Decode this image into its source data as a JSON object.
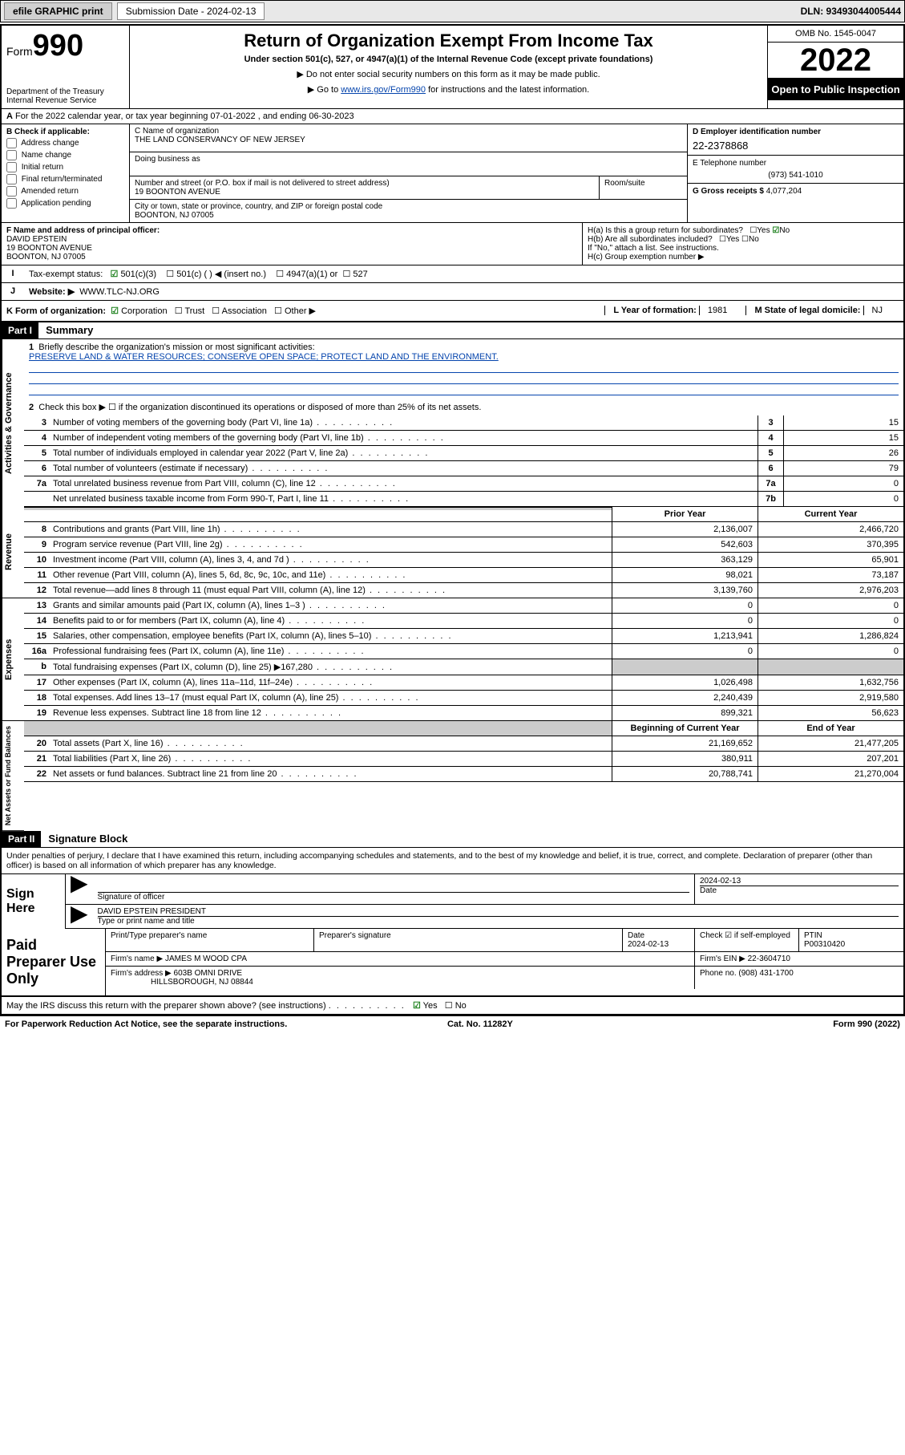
{
  "topbar": {
    "efile": "efile GRAPHIC print",
    "submission_label": "Submission Date - 2024-02-13",
    "dln": "DLN: 93493044005444"
  },
  "header": {
    "form_label": "Form",
    "form_number": "990",
    "dept": "Department of the Treasury\nInternal Revenue Service",
    "title": "Return of Organization Exempt From Income Tax",
    "sub": "Under section 501(c), 527, or 4947(a)(1) of the Internal Revenue Code (except private foundations)",
    "note1": "▶ Do not enter social security numbers on this form as it may be made public.",
    "note2_pre": "▶ Go to ",
    "note2_link": "www.irs.gov/Form990",
    "note2_post": " for instructions and the latest information.",
    "omb": "OMB No. 1545-0047",
    "year": "2022",
    "inspect": "Open to Public Inspection"
  },
  "rowA": "For the 2022 calendar year, or tax year beginning 07-01-2022    , and ending 06-30-2023",
  "boxB": {
    "title": "B Check if applicable:",
    "opts": [
      "Address change",
      "Name change",
      "Initial return",
      "Final return/terminated",
      "Amended return",
      "Application pending"
    ]
  },
  "boxC": {
    "name_lbl": "C Name of organization",
    "name": "THE LAND CONSERVANCY OF NEW JERSEY",
    "dba_lbl": "Doing business as",
    "addr_lbl": "Number and street (or P.O. box if mail is not delivered to street address)",
    "suite_lbl": "Room/suite",
    "addr": "19 BOONTON AVENUE",
    "city_lbl": "City or town, state or province, country, and ZIP or foreign postal code",
    "city": "BOONTON, NJ  07005"
  },
  "boxD": {
    "lbl": "D Employer identification number",
    "ein": "22-2378868",
    "tel_lbl": "E Telephone number",
    "tel": "(973) 541-1010",
    "gross_lbl": "G Gross receipts $",
    "gross": "4,077,204"
  },
  "boxF": {
    "lbl": "F Name and address of principal officer:",
    "name": "DAVID EPSTEIN",
    "addr1": "19 BOONTON AVENUE",
    "addr2": "BOONTON, NJ  07005"
  },
  "boxH": {
    "a_lbl": "H(a)  Is this a group return for subordinates?",
    "a_yes": "Yes",
    "a_no": "No",
    "b_lbl": "H(b)  Are all subordinates included?",
    "b_note": "If \"No,\" attach a list. See instructions.",
    "c_lbl": "H(c)  Group exemption number ▶"
  },
  "rowI": {
    "lbl": "Tax-exempt status:",
    "opts": [
      "501(c)(3)",
      "501(c) (  ) ◀ (insert no.)",
      "4947(a)(1) or",
      "527"
    ]
  },
  "rowJ": {
    "lbl": "Website: ▶",
    "val": "WWW.TLC-NJ.ORG"
  },
  "rowK": {
    "lbl": "K Form of organization:",
    "opts": [
      "Corporation",
      "Trust",
      "Association",
      "Other ▶"
    ],
    "Llbl": "L Year of formation:",
    "Lval": "1981",
    "Mlbl": "M State of legal domicile:",
    "Mval": "NJ"
  },
  "part1": {
    "bar": "Part I",
    "title": "Summary",
    "q1_lbl": "Briefly describe the organization's mission or most significant activities:",
    "q1_txt": "PRESERVE LAND & WATER RESOURCES; CONSERVE OPEN SPACE; PROTECT LAND AND THE ENVIRONMENT.",
    "q2": "Check this box ▶ ☐  if the organization discontinued its operations or disposed of more than 25% of its net assets.",
    "governance": [
      {
        "n": "3",
        "t": "Number of voting members of the governing body (Part VI, line 1a)",
        "b": "3",
        "v": "15"
      },
      {
        "n": "4",
        "t": "Number of independent voting members of the governing body (Part VI, line 1b)",
        "b": "4",
        "v": "15"
      },
      {
        "n": "5",
        "t": "Total number of individuals employed in calendar year 2022 (Part V, line 2a)",
        "b": "5",
        "v": "26"
      },
      {
        "n": "6",
        "t": "Total number of volunteers (estimate if necessary)",
        "b": "6",
        "v": "79"
      },
      {
        "n": "7a",
        "t": "Total unrelated business revenue from Part VIII, column (C), line 12",
        "b": "7a",
        "v": "0"
      },
      {
        "n": "",
        "t": "Net unrelated business taxable income from Form 990-T, Part I, line 11",
        "b": "7b",
        "v": "0"
      }
    ],
    "hdr_prior": "Prior Year",
    "hdr_curr": "Current Year",
    "revenue": [
      {
        "n": "8",
        "t": "Contributions and grants (Part VIII, line 1h)",
        "p": "2,136,007",
        "c": "2,466,720"
      },
      {
        "n": "9",
        "t": "Program service revenue (Part VIII, line 2g)",
        "p": "542,603",
        "c": "370,395"
      },
      {
        "n": "10",
        "t": "Investment income (Part VIII, column (A), lines 3, 4, and 7d )",
        "p": "363,129",
        "c": "65,901"
      },
      {
        "n": "11",
        "t": "Other revenue (Part VIII, column (A), lines 5, 6d, 8c, 9c, 10c, and 11e)",
        "p": "98,021",
        "c": "73,187"
      },
      {
        "n": "12",
        "t": "Total revenue—add lines 8 through 11 (must equal Part VIII, column (A), line 12)",
        "p": "3,139,760",
        "c": "2,976,203"
      }
    ],
    "expenses": [
      {
        "n": "13",
        "t": "Grants and similar amounts paid (Part IX, column (A), lines 1–3 )",
        "p": "0",
        "c": "0"
      },
      {
        "n": "14",
        "t": "Benefits paid to or for members (Part IX, column (A), line 4)",
        "p": "0",
        "c": "0"
      },
      {
        "n": "15",
        "t": "Salaries, other compensation, employee benefits (Part IX, column (A), lines 5–10)",
        "p": "1,213,941",
        "c": "1,286,824"
      },
      {
        "n": "16a",
        "t": "Professional fundraising fees (Part IX, column (A), line 11e)",
        "p": "0",
        "c": "0"
      },
      {
        "n": "b",
        "t": "Total fundraising expenses (Part IX, column (D), line 25) ▶167,280",
        "p": "SHADE",
        "c": "SHADE"
      },
      {
        "n": "17",
        "t": "Other expenses (Part IX, column (A), lines 11a–11d, 11f–24e)",
        "p": "1,026,498",
        "c": "1,632,756"
      },
      {
        "n": "18",
        "t": "Total expenses. Add lines 13–17 (must equal Part IX, column (A), line 25)",
        "p": "2,240,439",
        "c": "2,919,580"
      },
      {
        "n": "19",
        "t": "Revenue less expenses. Subtract line 18 from line 12",
        "p": "899,321",
        "c": "56,623"
      }
    ],
    "hdr_begin": "Beginning of Current Year",
    "hdr_end": "End of Year",
    "netassets": [
      {
        "n": "20",
        "t": "Total assets (Part X, line 16)",
        "p": "21,169,652",
        "c": "21,477,205"
      },
      {
        "n": "21",
        "t": "Total liabilities (Part X, line 26)",
        "p": "380,911",
        "c": "207,201"
      },
      {
        "n": "22",
        "t": "Net assets or fund balances. Subtract line 21 from line 20",
        "p": "20,788,741",
        "c": "21,270,004"
      }
    ]
  },
  "part2": {
    "bar": "Part II",
    "title": "Signature Block"
  },
  "penalty": "Under penalties of perjury, I declare that I have examined this return, including accompanying schedules and statements, and to the best of my knowledge and belief, it is true, correct, and complete. Declaration of preparer (other than officer) is based on all information of which preparer has any knowledge.",
  "sign": {
    "here": "Sign Here",
    "sig_lbl": "Signature of officer",
    "date_lbl": "Date",
    "date": "2024-02-13",
    "name": "DAVID EPSTEIN  PRESIDENT",
    "name_lbl": "Type or print name and title"
  },
  "prep": {
    "here": "Paid Preparer Use Only",
    "h": [
      "Print/Type preparer's name",
      "Preparer's signature",
      "Date",
      "",
      "PTIN"
    ],
    "r1_date": "2024-02-13",
    "r1_chk": "Check ☑ if self-employed",
    "r1_ptin": "P00310420",
    "firm_name_lbl": "Firm's name   ▶",
    "firm_name": "JAMES M WOOD CPA",
    "firm_ein_lbl": "Firm's EIN ▶",
    "firm_ein": "22-3604710",
    "firm_addr_lbl": "Firm's address ▶",
    "firm_addr1": "603B OMNI DRIVE",
    "firm_addr2": "HILLSBOROUGH, NJ  08844",
    "phone_lbl": "Phone no.",
    "phone": "(908) 431-1700"
  },
  "irs_discuss": "May the IRS discuss this return with the preparer shown above? (see instructions)",
  "foot": {
    "l": "For Paperwork Reduction Act Notice, see the separate instructions.",
    "m": "Cat. No. 11282Y",
    "r": "Form 990 (2022)"
  },
  "vt": {
    "gov": "Activities & Governance",
    "rev": "Revenue",
    "exp": "Expenses",
    "net": "Net Assets or Fund Balances"
  }
}
